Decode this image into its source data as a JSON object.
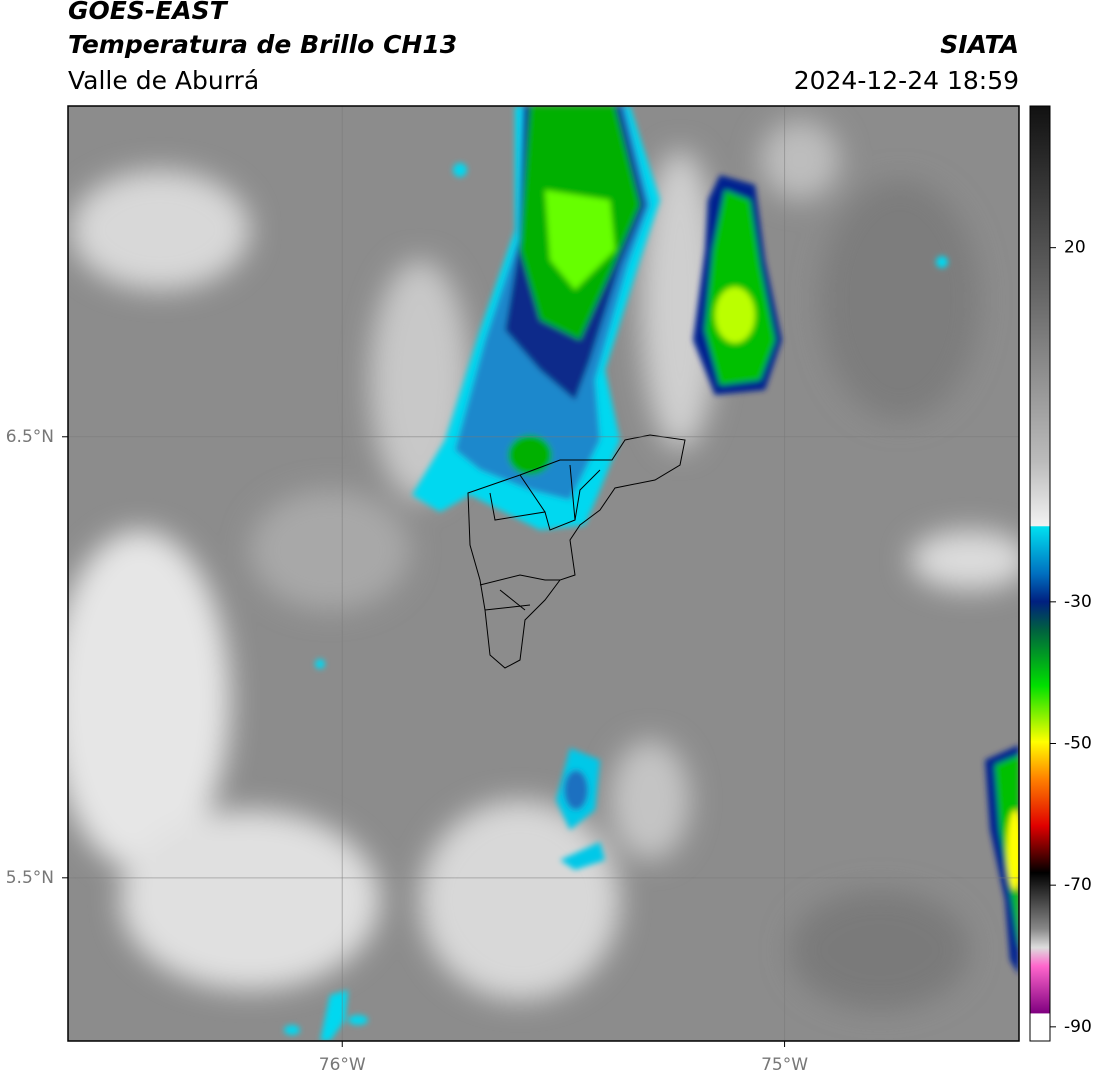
{
  "header": {
    "title": "GOES-EAST",
    "subtitle": "Temperatura de Brillo CH13",
    "region": "Valle de Aburrá",
    "source": "SIATA",
    "datetime": "2024-12-24 18:59"
  },
  "map": {
    "lon_lim": [
      -76.62,
      -74.47
    ],
    "lat_lim": [
      5.13,
      7.25
    ],
    "lon_ticks": [
      {
        "value": -76,
        "label": "76°W"
      },
      {
        "value": -75,
        "label": "75°W"
      }
    ],
    "lat_ticks": [
      {
        "value": 6.5,
        "label": "6.5°N"
      },
      {
        "value": 5.5,
        "label": "5.5°N"
      }
    ]
  },
  "colorbar": {
    "lim": [
      -92,
      40
    ],
    "ticks": [
      20,
      -30,
      -50,
      -70,
      -90
    ]
  }
}
